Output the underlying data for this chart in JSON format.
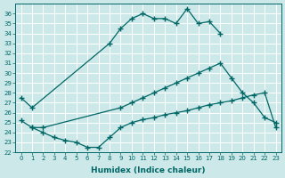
{
  "xlabel": "Humidex (Indice chaleur)",
  "background_color": "#cce8e8",
  "grid_color": "#ffffff",
  "line_color": "#006666",
  "xlim": [
    -0.5,
    23.5
  ],
  "ylim": [
    22,
    37
  ],
  "xticks": [
    0,
    1,
    2,
    3,
    4,
    5,
    6,
    7,
    8,
    9,
    10,
    11,
    12,
    13,
    14,
    15,
    16,
    17,
    18,
    19,
    20,
    21,
    22,
    23
  ],
  "yticks": [
    22,
    23,
    24,
    25,
    26,
    27,
    28,
    29,
    30,
    31,
    32,
    33,
    34,
    35,
    36
  ],
  "line_top_x": [
    0,
    1,
    8,
    9,
    10,
    11,
    12,
    13,
    14,
    15,
    16,
    17,
    18
  ],
  "line_top_y": [
    27.5,
    26.5,
    33.0,
    34.5,
    35.5,
    36.0,
    35.5,
    35.5,
    35.0,
    36.5,
    35.0,
    35.2,
    34.0
  ],
  "line_mid_x": [
    0,
    1,
    2,
    9,
    10,
    11,
    12,
    13,
    14,
    15,
    16,
    17,
    18,
    19,
    20,
    21,
    22,
    23
  ],
  "line_mid_y": [
    25.2,
    24.5,
    24.5,
    26.5,
    27.0,
    27.5,
    28.0,
    28.5,
    29.0,
    29.5,
    30.0,
    30.5,
    31.0,
    29.5,
    28.0,
    27.0,
    25.5,
    25.0
  ],
  "line_bot_x": [
    1,
    2,
    3,
    4,
    5,
    6,
    7,
    8,
    9,
    10,
    11,
    12,
    13,
    14,
    15,
    16,
    17,
    18,
    19,
    20,
    21,
    22,
    23
  ],
  "line_bot_y": [
    24.5,
    24.0,
    23.5,
    23.2,
    23.0,
    22.5,
    22.5,
    23.5,
    24.5,
    25.0,
    25.3,
    25.5,
    25.8,
    26.0,
    26.2,
    26.5,
    26.8,
    27.0,
    27.2,
    27.5,
    27.8,
    28.0,
    24.5
  ]
}
